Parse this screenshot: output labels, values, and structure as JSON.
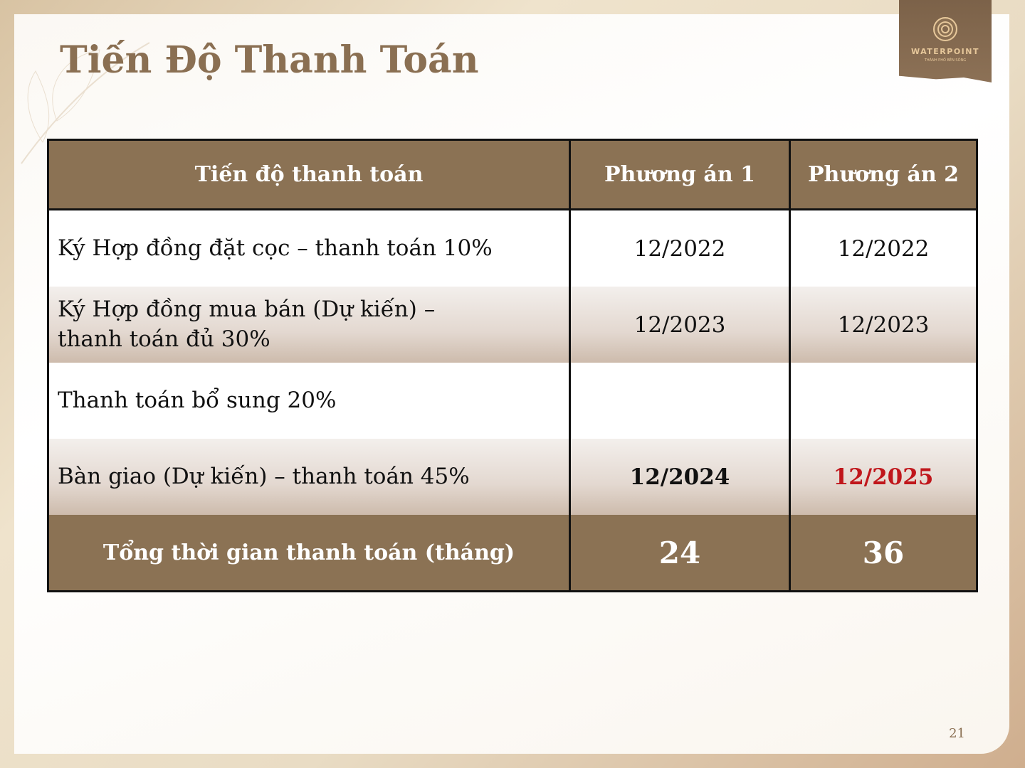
{
  "title": "Tiến Độ Thanh Toán",
  "logo": {
    "name": "WATERPOINT",
    "tagline": "THÀNH PHỐ BÊN SÔNG"
  },
  "table": {
    "headers": [
      "Tiến độ thanh toán",
      "Phương án 1",
      "Phương án 2"
    ],
    "rows": [
      {
        "label": "Ký Hợp đồng đặt cọc – thanh toán 10%",
        "p1": "12/2022",
        "p2": "12/2022"
      },
      {
        "label": "Ký Hợp đồng mua bán (Dự kiến) – thanh toán đủ 30%",
        "p1": "12/2023",
        "p2": "12/2023"
      },
      {
        "label": "Thanh toán bổ sung 20%",
        "p1": "",
        "p2": ""
      },
      {
        "label": "Bàn giao (Dự kiến) – thanh toán 45%",
        "p1": "12/2024",
        "p2": "12/2025"
      }
    ],
    "total": {
      "label": "Tổng thời gian thanh toán (tháng)",
      "p1": "24",
      "p2": "36"
    }
  },
  "colors": {
    "header_bg": "#8b7254",
    "title": "#8a6f52",
    "highlight": "#c0161b"
  },
  "page_number": "21"
}
